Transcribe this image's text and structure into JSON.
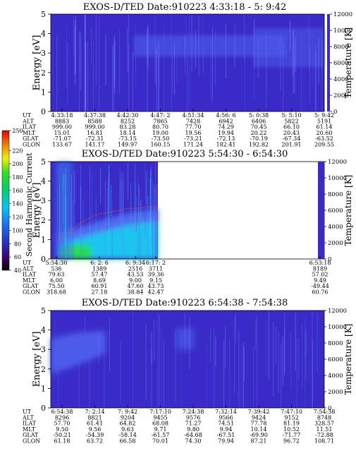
{
  "panels": [
    {
      "title": "EXOS-D/TED   Date:910223  4:33:18 - 5: 9:42",
      "y_label": "Energy [eV]",
      "right_label": "Temperature [K]",
      "y_ticks": [
        "0",
        "1",
        "2",
        "3",
        "4",
        "5"
      ],
      "right_ticks": [
        "0",
        "2000",
        "4000",
        "6000",
        "8000",
        "10000",
        "12000"
      ],
      "orbit_labels": [
        "UT",
        "ALT",
        "ILAT",
        "MLT",
        "GLAT",
        "GLON"
      ],
      "orbit_columns": [
        [
          "4:33:18",
          "8883",
          "999.00",
          "15.01",
          "-71.07",
          "133.67"
        ],
        [
          "4:37:38",
          "8588",
          "999.00",
          "16.81",
          "-72.31",
          "141.17"
        ],
        [
          "4:42:30",
          "8252",
          "83.28",
          "18.14",
          "-73.15",
          "149.97"
        ],
        [
          "4:47: 2",
          "7865",
          "80.70",
          "19.00",
          "-73.50",
          "160.15"
        ],
        [
          "4:51:34",
          "7428",
          "77.70",
          "19.56",
          "-73.21",
          "171.24"
        ],
        [
          "4:56: 6",
          "6942",
          "74.29",
          "19.94",
          "-72.13",
          "182.41"
        ],
        [
          "5: 0:38",
          "6406",
          "70.45",
          "20.22",
          "-70.19",
          "192.82"
        ],
        [
          "5: 5:10",
          "5822",
          "66.10",
          "20.43",
          "-67.34",
          "201.91"
        ],
        [
          "5: 9:42",
          "5191",
          "61.14",
          "20.60",
          "-63.52",
          "209.55"
        ]
      ]
    },
    {
      "title": "EXOS-D/TED   Date:910223  5:54:30 - 6:54:30",
      "y_label": "Energy [eV]",
      "right_label": "Temperature [K]",
      "colorbar_label": "Second Harmonic Current",
      "colorbar_ticks": [
        "40",
        "60",
        "80",
        "100",
        "120",
        "140",
        "160",
        "180",
        "200",
        "220",
        "250"
      ],
      "y_ticks": [
        "0",
        "1",
        "2",
        "3",
        "4",
        "5"
      ],
      "right_ticks": [
        "0",
        "2000",
        "4000",
        "6000",
        "8000",
        "10000",
        "12000"
      ],
      "orbit_labels": [
        "UT",
        "ALT",
        "ILAT",
        "MLT",
        "GLAT",
        "GLON"
      ],
      "orbit_columns": [
        [
          "5:54:30",
          "536",
          "79.63",
          "6.00",
          "75.50",
          "318.68"
        ],
        [
          "6: 2: 6",
          "1389",
          "57.47",
          "8.69",
          "60.91",
          "27.18"
        ],
        [
          "6: 9:34",
          "2516",
          "43.53",
          "9.00",
          "47.60",
          "38.84"
        ],
        [
          "6:17: 2",
          "3711",
          "39.36",
          "9.15",
          "43.73",
          "42.47"
        ],
        [
          "6:53:18",
          "8189",
          "57.02",
          "9.49",
          "-49.44",
          "60.76"
        ]
      ]
    },
    {
      "title": "EXOS-D/TED   Date:910223  6:54:38 - 7:54:38",
      "y_label": "Energy [eV]",
      "right_label": "Temperature [K]",
      "y_ticks": [
        "0",
        "1",
        "2",
        "3",
        "4",
        "5"
      ],
      "right_ticks": [
        "0",
        "2000",
        "4000",
        "6000",
        "8000",
        "10000",
        "12000"
      ],
      "orbit_labels": [
        "UT",
        "ALT",
        "ILAT",
        "MLT",
        "GLAT",
        "GLON"
      ],
      "orbit_columns": [
        [
          "6:54:38",
          "8296",
          "57.70",
          "9.50",
          "-50.21",
          "61.18"
        ],
        [
          "7: 2:14",
          "8821",
          "61.41",
          "9.56",
          "-54.39",
          "63.72"
        ],
        [
          "7: 9:42",
          "9204",
          "64.82",
          "9.63",
          "-58.14",
          "66.58"
        ],
        [
          "7:17:10",
          "9455",
          "68.08",
          "9.71",
          "-61.57",
          "70.01"
        ],
        [
          "7:24:38",
          "9576",
          "71.27",
          "9.80",
          "-64.68",
          "74.30"
        ],
        [
          "7:32:14",
          "9566",
          "74.51",
          "9.94",
          "-67.51",
          "79.94"
        ],
        [
          "7:39:42",
          "9424",
          "77.78",
          "10.14",
          "-69.90",
          "87.21"
        ],
        [
          "7:47:10",
          "9152",
          "81.19",
          "10.52",
          "-71.77",
          "96.72"
        ],
        [
          "7:54:38",
          "8748",
          "328.57",
          "11.51",
          "-72.88",
          "108.71"
        ]
      ]
    }
  ],
  "chart_data": [
    {
      "type": "heatmap",
      "title": "EXOS-D/TED   Date:910223  4:33:18 - 5: 9:42",
      "xlabel": "UT",
      "ylabel": "Energy [eV]",
      "y2label": "Temperature [K]",
      "ylim": [
        0,
        5
      ],
      "y2lim": [
        0,
        12000
      ],
      "x": [
        "4:33:18",
        "4:37:38",
        "4:42:30",
        "4:47: 2",
        "4:51:34",
        "4:56: 6",
        "5: 0:38",
        "5: 5:10",
        "5: 9:42"
      ],
      "features": [
        {
          "ut_from": "4:45",
          "ut_to": "5: 3",
          "energy_from": 2.5,
          "energy_to": 4.0
        },
        {
          "ut_from": "5: 6",
          "ut_to": "5: 9:42",
          "energy_from": 2.0,
          "energy_to": 4.0
        }
      ]
    },
    {
      "type": "heatmap",
      "title": "EXOS-D/TED   Date:910223  5:54:30 - 6:54:30",
      "xlabel": "UT",
      "ylabel": "Energy [eV]",
      "y2label": "Temperature [K]",
      "colorbar_label": "Second Harmonic Current",
      "colorbar_range": [
        40,
        250
      ],
      "ylim": [
        0,
        5
      ],
      "y2lim": [
        0,
        12000
      ],
      "x": [
        "5:54:30",
        "6: 2: 6",
        "6: 9:34",
        "6:17: 2",
        "6:53:18"
      ],
      "data_coverage": {
        "ut_from": "5:54:30",
        "ut_to": "6:17: 2"
      },
      "temperature_trace_energy": [
        0.9,
        1.4,
        1.8,
        2.1,
        2.3,
        2.4,
        2.5,
        2.6,
        2.6,
        2.7,
        2.6
      ]
    },
    {
      "type": "heatmap",
      "title": "EXOS-D/TED   Date:910223  6:54:38 - 7:54:38",
      "xlabel": "UT",
      "ylabel": "Energy [eV]",
      "y2label": "Temperature [K]",
      "ylim": [
        0,
        5
      ],
      "y2lim": [
        0,
        12000
      ],
      "x": [
        "6:54:38",
        "7: 2:14",
        "7: 9:42",
        "7:17:10",
        "7:24:38",
        "7:32:14",
        "7:39:42",
        "7:47:10",
        "7:54:38"
      ],
      "features": [
        {
          "ut_from": "6:54:38",
          "ut_to": "7: 6",
          "energy_from": 2.5,
          "energy_to": 4.0
        },
        {
          "ut_from": "7:24",
          "ut_to": "7:29",
          "energy_from": 3.0,
          "energy_to": 4.0
        }
      ]
    }
  ],
  "colors": {
    "background_field": "#3a2bc8",
    "band_light": "#5a6cf0",
    "band_cyan": "#1ec4f0",
    "band_green": "#22e04a",
    "empty": "#ffffff"
  }
}
